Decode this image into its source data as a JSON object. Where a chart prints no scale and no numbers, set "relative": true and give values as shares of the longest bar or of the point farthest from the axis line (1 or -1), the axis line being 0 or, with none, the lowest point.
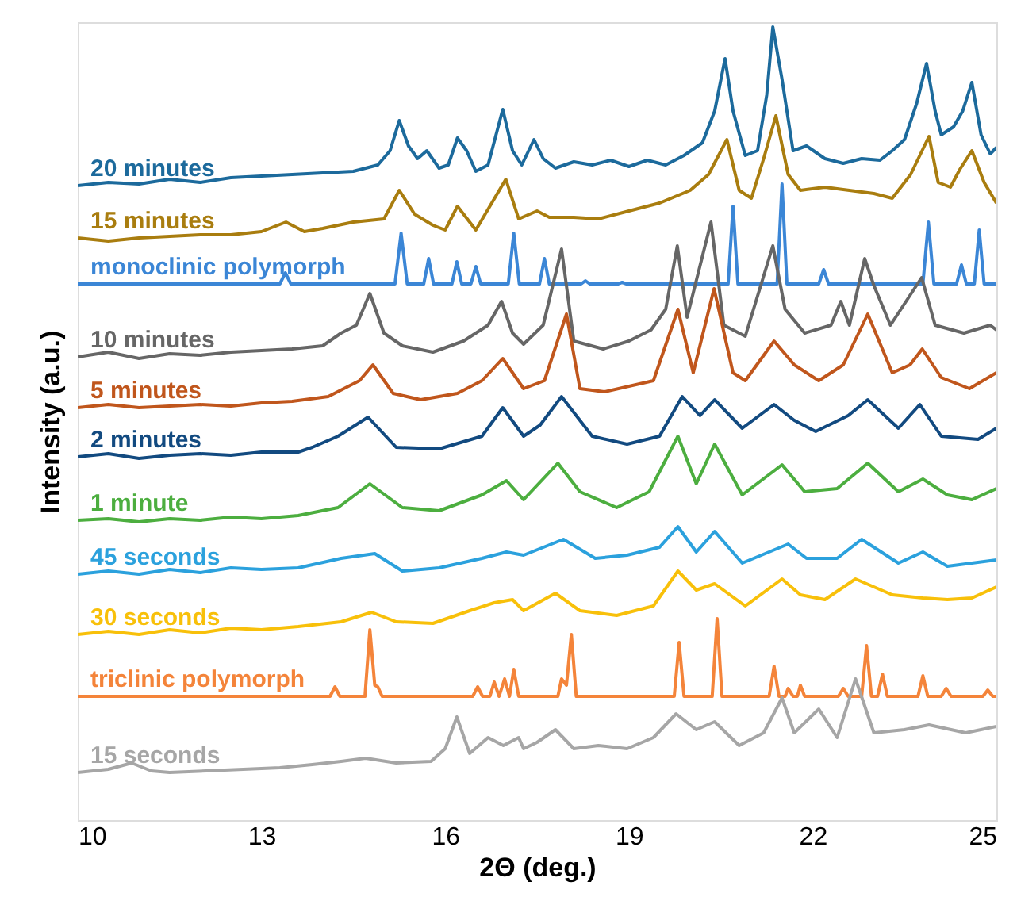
{
  "chart_data": {
    "type": "line",
    "relative": true,
    "xlabel": "2Θ (deg.)",
    "ylabel": "Intensity (a.u.)",
    "xlim": [
      10,
      25
    ],
    "xticks": [
      10,
      13,
      16,
      19,
      22,
      25
    ],
    "grid": false,
    "series": [
      {
        "name": "20 minutes",
        "color": "#1c6a9c",
        "x": [
          10,
          10.5,
          11,
          11.5,
          12,
          12.5,
          13,
          13.5,
          14,
          14.5,
          14.9,
          15.1,
          15.25,
          15.4,
          15.55,
          15.7,
          15.9,
          16.05,
          16.2,
          16.35,
          16.5,
          16.7,
          16.94,
          17.1,
          17.25,
          17.45,
          17.6,
          17.8,
          18.1,
          18.4,
          18.7,
          19.0,
          19.3,
          19.6,
          19.9,
          20.2,
          20.4,
          20.57,
          20.7,
          20.9,
          21.1,
          21.25,
          21.35,
          21.5,
          21.68,
          21.9,
          22.2,
          22.5,
          22.8,
          23.1,
          23.3,
          23.5,
          23.7,
          23.86,
          24.0,
          24.1,
          24.3,
          24.45,
          24.6,
          24.75,
          24.9,
          25
        ],
        "values": [
          0.8,
          0.804,
          0.802,
          0.808,
          0.804,
          0.81,
          0.812,
          0.814,
          0.816,
          0.818,
          0.826,
          0.844,
          0.882,
          0.85,
          0.834,
          0.844,
          0.822,
          0.826,
          0.86,
          0.844,
          0.818,
          0.826,
          0.896,
          0.844,
          0.826,
          0.858,
          0.834,
          0.822,
          0.83,
          0.826,
          0.832,
          0.824,
          0.832,
          0.826,
          0.838,
          0.854,
          0.894,
          0.96,
          0.894,
          0.838,
          0.844,
          0.914,
          1,
          0.934,
          0.844,
          0.85,
          0.834,
          0.828,
          0.834,
          0.832,
          0.844,
          0.858,
          0.904,
          0.954,
          0.894,
          0.864,
          0.874,
          0.894,
          0.93,
          0.864,
          0.84,
          0.848
        ]
      },
      {
        "name": "15 minutes",
        "color": "#a97d0f",
        "x": [
          10,
          10.5,
          11,
          11.5,
          12,
          12.5,
          13,
          13.4,
          13.7,
          14,
          14.5,
          15,
          15.25,
          15.5,
          15.8,
          16.0,
          16.2,
          16.5,
          16.99,
          17.2,
          17.5,
          17.7,
          18.1,
          18.5,
          19,
          19.5,
          20,
          20.3,
          20.6,
          20.8,
          21.0,
          21.2,
          21.4,
          21.6,
          21.8,
          22.2,
          22.6,
          23.0,
          23.3,
          23.6,
          23.9,
          24.05,
          24.25,
          24.4,
          24.6,
          24.8,
          25
        ],
        "values": [
          0.734,
          0.73,
          0.734,
          0.736,
          0.738,
          0.738,
          0.742,
          0.754,
          0.742,
          0.746,
          0.754,
          0.758,
          0.794,
          0.764,
          0.75,
          0.744,
          0.774,
          0.744,
          0.808,
          0.758,
          0.768,
          0.76,
          0.76,
          0.758,
          0.768,
          0.778,
          0.794,
          0.814,
          0.858,
          0.794,
          0.784,
          0.834,
          0.888,
          0.814,
          0.794,
          0.798,
          0.794,
          0.79,
          0.784,
          0.814,
          0.862,
          0.804,
          0.798,
          0.82,
          0.844,
          0.804,
          0.778
        ]
      },
      {
        "name": "monoclinic polymorph",
        "color": "#3b86d6",
        "x": [
          10,
          13.3,
          13.39,
          13.48,
          15.18,
          15.28,
          15.38,
          15.65,
          15.73,
          15.81,
          16.11,
          16.19,
          16.27,
          16.42,
          16.5,
          16.58,
          17.03,
          17.12,
          17.21,
          17.54,
          17.62,
          17.7,
          18.22,
          18.29,
          18.36,
          18.82,
          18.89,
          18.96,
          20.62,
          20.7,
          20.78,
          21.42,
          21.5,
          21.58,
          22.1,
          22.18,
          22.26,
          23.8,
          23.89,
          23.98,
          24.35,
          24.43,
          24.51,
          24.64,
          24.72,
          24.8,
          25
        ],
        "values": [
          0.676,
          0.676,
          0.69,
          0.676,
          0.676,
          0.74,
          0.676,
          0.676,
          0.708,
          0.676,
          0.676,
          0.704,
          0.676,
          0.676,
          0.698,
          0.676,
          0.676,
          0.74,
          0.676,
          0.676,
          0.708,
          0.676,
          0.676,
          0.68,
          0.676,
          0.676,
          0.678,
          0.676,
          0.676,
          0.774,
          0.676,
          0.676,
          0.802,
          0.676,
          0.676,
          0.694,
          0.676,
          0.676,
          0.754,
          0.676,
          0.676,
          0.7,
          0.676,
          0.676,
          0.744,
          0.676,
          0.676
        ]
      },
      {
        "name": "10 minutes",
        "color": "#666666",
        "x": [
          10,
          10.5,
          11,
          11.5,
          12,
          12.5,
          13,
          13.5,
          14,
          14.3,
          14.55,
          14.77,
          15.0,
          15.3,
          15.8,
          16.3,
          16.7,
          16.92,
          17.1,
          17.28,
          17.6,
          17.9,
          18.1,
          18.58,
          19.0,
          19.36,
          19.6,
          19.79,
          19.95,
          20.34,
          20.55,
          20.9,
          21.35,
          21.55,
          21.87,
          22.3,
          22.46,
          22.6,
          22.85,
          23.0,
          23.27,
          23.78,
          24.0,
          24.47,
          24.9,
          25
        ],
        "values": [
          0.584,
          0.59,
          0.582,
          0.588,
          0.586,
          0.59,
          0.592,
          0.594,
          0.598,
          0.614,
          0.624,
          0.664,
          0.614,
          0.598,
          0.59,
          0.604,
          0.624,
          0.654,
          0.614,
          0.6,
          0.624,
          0.72,
          0.604,
          0.594,
          0.604,
          0.618,
          0.644,
          0.724,
          0.634,
          0.754,
          0.624,
          0.61,
          0.724,
          0.644,
          0.614,
          0.624,
          0.654,
          0.624,
          0.708,
          0.674,
          0.624,
          0.684,
          0.624,
          0.614,
          0.624,
          0.618
        ]
      },
      {
        "name": "5 minutes",
        "color": "#c0561c",
        "x": [
          10,
          10.5,
          11,
          11.5,
          12,
          12.5,
          13,
          13.5,
          14.09,
          14.6,
          14.82,
          15.15,
          15.6,
          16.2,
          16.6,
          16.94,
          17.28,
          17.62,
          17.98,
          18.2,
          18.6,
          19.4,
          19.8,
          20.05,
          20.39,
          20.7,
          20.9,
          21.37,
          21.7,
          22.1,
          22.5,
          22.9,
          23.3,
          23.59,
          23.79,
          24.1,
          24.56,
          25
        ],
        "values": [
          0.52,
          0.524,
          0.52,
          0.522,
          0.524,
          0.522,
          0.526,
          0.528,
          0.534,
          0.554,
          0.574,
          0.538,
          0.53,
          0.538,
          0.554,
          0.582,
          0.544,
          0.554,
          0.638,
          0.544,
          0.54,
          0.554,
          0.644,
          0.564,
          0.67,
          0.564,
          0.554,
          0.604,
          0.574,
          0.554,
          0.574,
          0.638,
          0.564,
          0.574,
          0.594,
          0.558,
          0.544,
          0.564
        ]
      },
      {
        "name": "2 minutes",
        "color": "#124a80",
        "x": [
          10,
          10.5,
          11,
          11.5,
          12,
          12.5,
          13,
          13.6,
          13.83,
          14.25,
          14.74,
          15.2,
          15.9,
          16.6,
          16.94,
          17.28,
          17.55,
          17.9,
          18.4,
          18.97,
          19.5,
          19.87,
          20.16,
          20.4,
          20.85,
          21.37,
          21.7,
          22.05,
          22.58,
          22.9,
          23.4,
          23.75,
          24.1,
          24.7,
          25
        ],
        "values": [
          0.458,
          0.462,
          0.456,
          0.46,
          0.462,
          0.46,
          0.464,
          0.464,
          0.47,
          0.484,
          0.508,
          0.47,
          0.468,
          0.484,
          0.52,
          0.484,
          0.498,
          0.534,
          0.484,
          0.474,
          0.484,
          0.534,
          0.51,
          0.53,
          0.494,
          0.524,
          0.504,
          0.49,
          0.51,
          0.53,
          0.494,
          0.524,
          0.484,
          0.48,
          0.494
        ]
      },
      {
        "name": "1 minute",
        "color": "#4cae3f",
        "x": [
          10,
          10.5,
          11,
          11.5,
          12,
          12.5,
          13,
          13.6,
          14.25,
          14.77,
          15.3,
          15.9,
          16.6,
          17.0,
          17.28,
          17.84,
          18.2,
          18.8,
          19.33,
          19.8,
          20.1,
          20.4,
          20.85,
          21.5,
          21.87,
          22.4,
          22.9,
          23.4,
          23.8,
          24.2,
          24.6,
          25
        ],
        "values": [
          0.378,
          0.38,
          0.376,
          0.38,
          0.378,
          0.382,
          0.38,
          0.384,
          0.394,
          0.424,
          0.394,
          0.39,
          0.41,
          0.428,
          0.404,
          0.45,
          0.414,
          0.394,
          0.414,
          0.484,
          0.424,
          0.474,
          0.41,
          0.448,
          0.414,
          0.418,
          0.45,
          0.414,
          0.43,
          0.41,
          0.404,
          0.418
        ]
      },
      {
        "name": "45 seconds",
        "color": "#2ba1dd",
        "x": [
          10,
          10.5,
          11,
          11.5,
          12,
          12.5,
          13,
          13.6,
          14.3,
          14.85,
          15.3,
          15.9,
          16.6,
          17.0,
          17.28,
          17.93,
          18.45,
          18.97,
          19.5,
          19.8,
          20.1,
          20.4,
          20.85,
          21.6,
          21.9,
          22.4,
          22.8,
          23.4,
          23.8,
          24.2,
          25
        ],
        "values": [
          0.31,
          0.314,
          0.31,
          0.316,
          0.312,
          0.318,
          0.316,
          0.318,
          0.33,
          0.336,
          0.314,
          0.318,
          0.33,
          0.338,
          0.334,
          0.354,
          0.33,
          0.334,
          0.344,
          0.37,
          0.338,
          0.364,
          0.324,
          0.348,
          0.33,
          0.33,
          0.354,
          0.324,
          0.338,
          0.32,
          0.328
        ]
      },
      {
        "name": "30 seconds",
        "color": "#f8c00a",
        "x": [
          10,
          10.5,
          11,
          11.5,
          12,
          12.5,
          13,
          13.6,
          14.3,
          14.8,
          15.2,
          15.8,
          16.4,
          16.8,
          17.1,
          17.28,
          17.8,
          18.2,
          18.8,
          19.4,
          19.8,
          20.1,
          20.4,
          20.9,
          21.5,
          21.8,
          22.2,
          22.7,
          23.3,
          23.8,
          24.2,
          24.6,
          25
        ],
        "values": [
          0.234,
          0.238,
          0.234,
          0.24,
          0.236,
          0.242,
          0.24,
          0.244,
          0.25,
          0.262,
          0.25,
          0.248,
          0.264,
          0.274,
          0.278,
          0.264,
          0.286,
          0.264,
          0.258,
          0.27,
          0.314,
          0.29,
          0.298,
          0.27,
          0.304,
          0.284,
          0.278,
          0.304,
          0.284,
          0.28,
          0.278,
          0.28,
          0.294
        ]
      },
      {
        "name": "triclinic polymorph",
        "color": "#f4843a",
        "x": [
          10,
          14.12,
          14.2,
          14.28,
          14.69,
          14.77,
          14.85,
          14.9,
          14.97,
          16.45,
          16.53,
          16.61,
          16.73,
          16.8,
          16.88,
          16.97,
          17.05,
          17.12,
          17.2,
          17.84,
          17.9,
          17.98,
          18.06,
          18.14,
          19.74,
          19.82,
          19.9,
          20.36,
          20.44,
          20.52,
          21.29,
          21.37,
          21.45,
          21.55,
          21.6,
          21.68,
          21.75,
          21.8,
          21.87,
          22.42,
          22.5,
          22.58,
          22.8,
          22.88,
          22.96,
          23.06,
          23.14,
          23.22,
          23.72,
          23.8,
          23.88,
          24.1,
          24.18,
          24.26,
          24.78,
          24.86,
          24.94,
          25
        ],
        "values": [
          0.156,
          0.156,
          0.168,
          0.156,
          0.156,
          0.24,
          0.17,
          0.168,
          0.156,
          0.156,
          0.168,
          0.156,
          0.156,
          0.174,
          0.156,
          0.178,
          0.156,
          0.19,
          0.156,
          0.156,
          0.178,
          0.17,
          0.234,
          0.156,
          0.156,
          0.224,
          0.156,
          0.156,
          0.254,
          0.156,
          0.156,
          0.194,
          0.156,
          0.156,
          0.166,
          0.156,
          0.156,
          0.17,
          0.156,
          0.156,
          0.166,
          0.156,
          0.156,
          0.22,
          0.156,
          0.156,
          0.184,
          0.156,
          0.156,
          0.182,
          0.156,
          0.156,
          0.166,
          0.156,
          0.156,
          0.164,
          0.156,
          0.156
        ]
      },
      {
        "name": "15 seconds",
        "color": "#a6a6a6",
        "x": [
          10,
          10.5,
          10.88,
          11.2,
          11.5,
          12.1,
          12.7,
          13.3,
          13.83,
          14.3,
          14.7,
          15.2,
          15.77,
          16.0,
          16.19,
          16.4,
          16.7,
          16.95,
          17.2,
          17.28,
          17.5,
          17.8,
          18.1,
          18.5,
          18.97,
          19.4,
          19.77,
          20.1,
          20.4,
          20.8,
          21.2,
          21.5,
          21.7,
          22.1,
          22.4,
          22.7,
          23.0,
          23.5,
          23.9,
          24.5,
          25
        ],
        "values": [
          0.06,
          0.064,
          0.072,
          0.062,
          0.06,
          0.062,
          0.064,
          0.066,
          0.07,
          0.074,
          0.078,
          0.072,
          0.074,
          0.09,
          0.13,
          0.084,
          0.104,
          0.094,
          0.104,
          0.09,
          0.098,
          0.114,
          0.09,
          0.094,
          0.09,
          0.104,
          0.134,
          0.114,
          0.124,
          0.094,
          0.11,
          0.154,
          0.11,
          0.14,
          0.104,
          0.178,
          0.11,
          0.114,
          0.12,
          0.11,
          0.118
        ]
      }
    ]
  }
}
